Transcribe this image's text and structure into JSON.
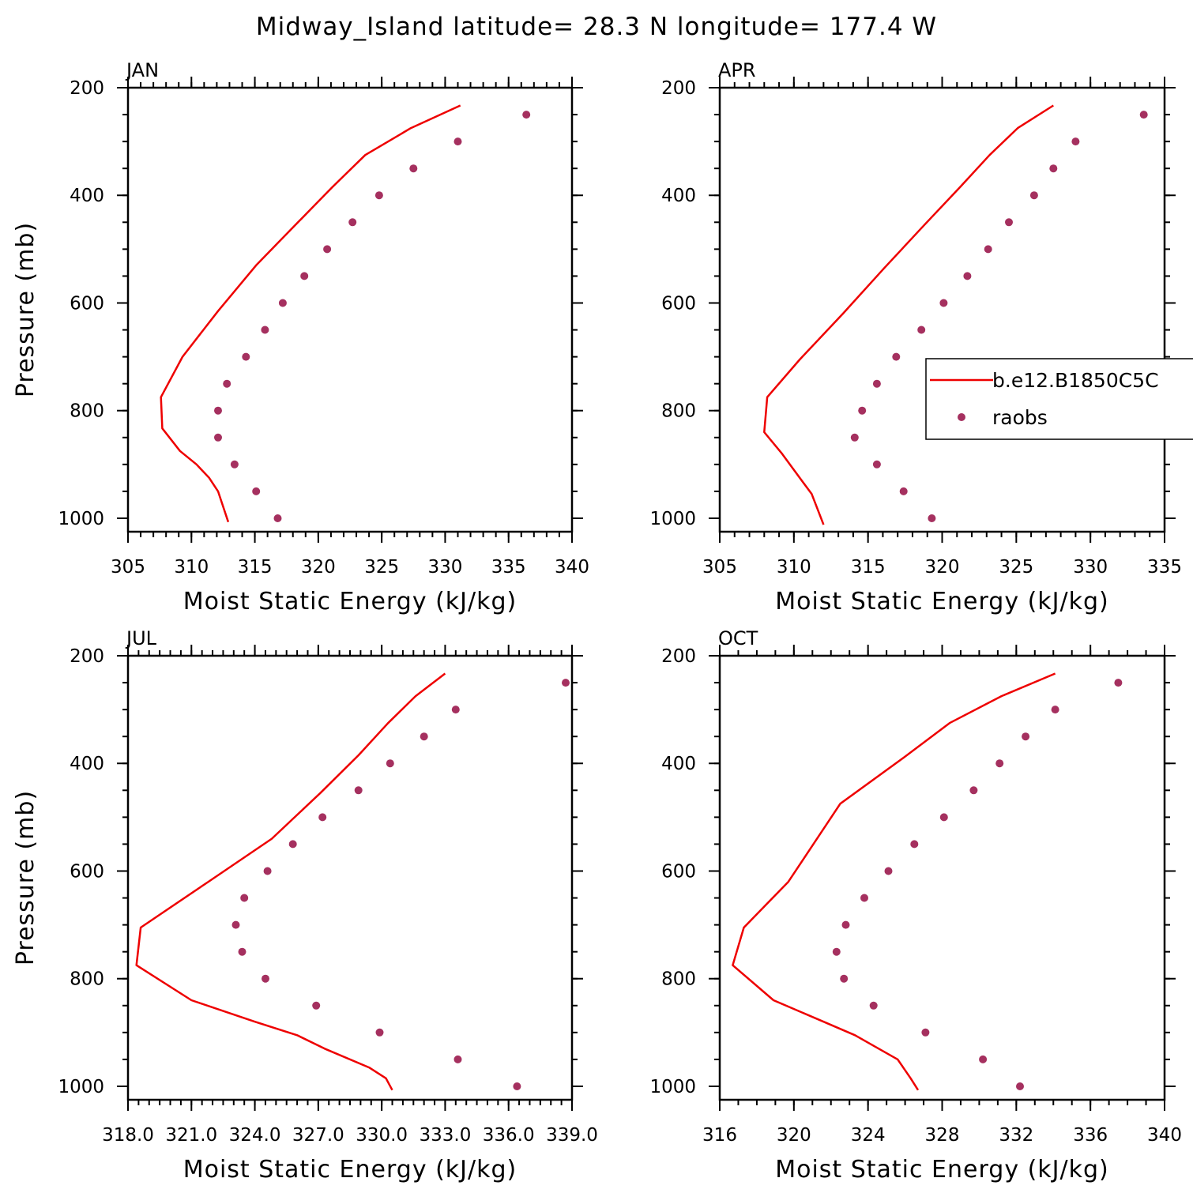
{
  "title": "Midway_Island  latitude= 28.3 N longitude= 177.4 W",
  "colors": {
    "model": "#ee0000",
    "obs": "#a5305f"
  },
  "legend": {
    "items": [
      {
        "label": "b.e12.B1850C5C",
        "kind": "line"
      },
      {
        "label": "raobs",
        "kind": "marker"
      }
    ]
  },
  "chart_data": [
    {
      "type": "line",
      "panel": "JAN",
      "xlabel": "Moist Static Energy (kJ/kg)",
      "ylabel": "Pressure (mb)",
      "xlim": [
        305,
        340
      ],
      "xticks": [
        305,
        310,
        315,
        320,
        325,
        330,
        335,
        340
      ],
      "xtick_labels": [
        "305",
        "310",
        "315",
        "320",
        "325",
        "330",
        "335",
        "340"
      ],
      "xminor": 1,
      "ylim": [
        200,
        1025
      ],
      "yticks": [
        200,
        400,
        600,
        800,
        1000
      ],
      "yminor": 50,
      "series": [
        {
          "name": "b.e12.B1850C5C",
          "kind": "line",
          "x": [
            331.2,
            327.3,
            323.7,
            321.1,
            318.4,
            315.1,
            312.1,
            309.3,
            307.6,
            307.7,
            309.1,
            310.4,
            311.4,
            312.1,
            312.9
          ],
          "y": [
            233,
            275,
            325,
            385,
            450,
            530,
            615,
            700,
            775,
            833,
            875,
            900,
            925,
            950,
            1007
          ]
        },
        {
          "name": "raobs",
          "kind": "marker",
          "x": [
            336.4,
            331.0,
            327.5,
            324.8,
            322.7,
            320.7,
            318.9,
            317.2,
            315.8,
            314.3,
            312.8,
            312.1,
            312.1,
            313.4,
            315.1,
            316.8
          ],
          "y": [
            250,
            300,
            350,
            400,
            450,
            500,
            550,
            600,
            650,
            700,
            750,
            800,
            850,
            900,
            950,
            1000
          ]
        }
      ]
    },
    {
      "type": "line",
      "panel": "APR",
      "xlabel": "Moist Static Energy (kJ/kg)",
      "ylabel": "",
      "xlim": [
        305,
        335
      ],
      "xticks": [
        305,
        310,
        315,
        320,
        325,
        330,
        335
      ],
      "xtick_labels": [
        "305",
        "310",
        "315",
        "320",
        "325",
        "330",
        "335"
      ],
      "xminor": 1,
      "ylim": [
        200,
        1025
      ],
      "yticks": [
        200,
        400,
        600,
        800,
        1000
      ],
      "yminor": 50,
      "series": [
        {
          "name": "b.e12.B1850C5C",
          "kind": "line",
          "x": [
            327.5,
            325.1,
            323.2,
            321.2,
            318.8,
            316.1,
            313.3,
            310.4,
            308.2,
            308.0,
            309.2,
            310.4,
            311.2,
            312.0
          ],
          "y": [
            233,
            275,
            325,
            385,
            455,
            535,
            620,
            705,
            775,
            840,
            880,
            925,
            955,
            1012
          ]
        },
        {
          "name": "raobs",
          "kind": "marker",
          "x": [
            333.6,
            329.0,
            327.5,
            326.2,
            324.5,
            323.1,
            321.7,
            320.1,
            318.6,
            316.9,
            315.6,
            314.6,
            314.1,
            315.6,
            317.4,
            319.3
          ],
          "y": [
            250,
            300,
            350,
            400,
            450,
            500,
            550,
            600,
            650,
            700,
            750,
            800,
            850,
            900,
            950,
            1000
          ]
        }
      ]
    },
    {
      "type": "line",
      "panel": "JUL",
      "xlabel": "Moist Static Energy (kJ/kg)",
      "ylabel": "Pressure (mb)",
      "xlim": [
        318.0,
        339.0
      ],
      "xticks": [
        318,
        321,
        324,
        327,
        330,
        333,
        336,
        339
      ],
      "xtick_labels": [
        "318.0",
        "321.0",
        "324.0",
        "327.0",
        "330.0",
        "333.0",
        "336.0",
        "339.0"
      ],
      "xminor": 0.5,
      "ylim": [
        200,
        1025
      ],
      "yticks": [
        200,
        400,
        600,
        800,
        1000
      ],
      "yminor": 50,
      "series": [
        {
          "name": "b.e12.B1850C5C",
          "kind": "line",
          "x": [
            333.0,
            331.6,
            330.3,
            328.9,
            327.1,
            324.8,
            321.8,
            318.6,
            318.4,
            321.0,
            324.0,
            326.0,
            327.3,
            329.4,
            330.2,
            330.5
          ],
          "y": [
            233,
            275,
            325,
            385,
            455,
            540,
            620,
            705,
            775,
            840,
            880,
            905,
            930,
            965,
            985,
            1007
          ]
        },
        {
          "name": "raobs",
          "kind": "marker",
          "x": [
            338.7,
            333.5,
            332.0,
            330.4,
            328.9,
            327.2,
            325.8,
            324.6,
            323.5,
            323.1,
            323.4,
            324.5,
            326.9,
            329.9,
            333.6,
            336.4
          ],
          "y": [
            250,
            300,
            350,
            400,
            450,
            500,
            550,
            600,
            650,
            700,
            750,
            800,
            850,
            900,
            950,
            1000
          ]
        }
      ]
    },
    {
      "type": "line",
      "panel": "OCT",
      "xlabel": "Moist Static Energy (kJ/kg)",
      "ylabel": "",
      "xlim": [
        316,
        340
      ],
      "xticks": [
        316,
        320,
        324,
        328,
        332,
        336,
        340
      ],
      "xtick_labels": [
        "316",
        "320",
        "324",
        "328",
        "332",
        "336",
        "340"
      ],
      "xminor": 1,
      "ylim": [
        200,
        1025
      ],
      "yticks": [
        200,
        400,
        600,
        800,
        1000
      ],
      "yminor": 50,
      "series": [
        {
          "name": "b.e12.B1850C5C",
          "kind": "line",
          "x": [
            334.1,
            331.2,
            328.4,
            325.9,
            322.5,
            319.7,
            317.3,
            316.7,
            318.9,
            321.6,
            323.3,
            325.6,
            326.3,
            326.7
          ],
          "y": [
            233,
            275,
            325,
            390,
            475,
            620,
            705,
            775,
            840,
            880,
            905,
            950,
            985,
            1007
          ]
        },
        {
          "name": "raobs",
          "kind": "marker",
          "x": [
            337.5,
            334.1,
            332.5,
            331.1,
            329.7,
            328.1,
            326.5,
            325.1,
            323.8,
            322.8,
            322.3,
            322.7,
            324.3,
            327.1,
            330.2,
            332.2
          ],
          "y": [
            250,
            300,
            350,
            400,
            450,
            500,
            550,
            600,
            650,
            700,
            750,
            800,
            850,
            900,
            950,
            1000
          ]
        }
      ]
    }
  ]
}
